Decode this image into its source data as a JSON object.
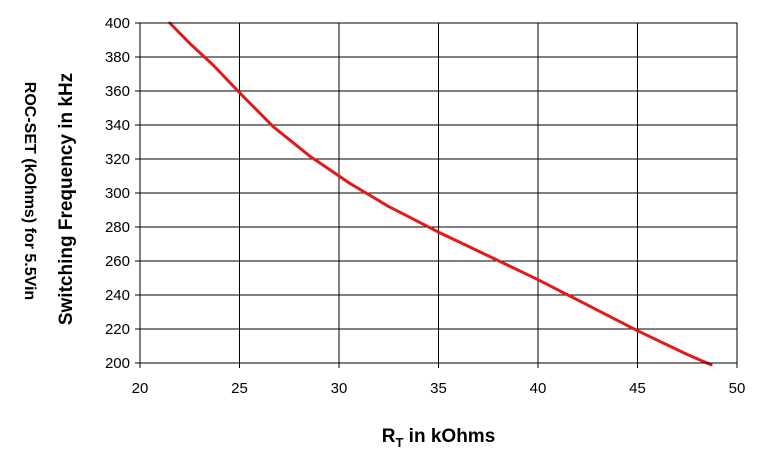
{
  "chart_data": {
    "type": "line",
    "title": "",
    "xlabel": {
      "main": "R",
      "subscript": "T",
      "suffix": " in kOhms"
    },
    "ylabel": "Switching Frequency in kHz",
    "ylabel_secondary": "ROC-SET (kOhms) for 5.5Vin",
    "xlim": [
      20,
      50
    ],
    "ylim": [
      200,
      400
    ],
    "xticks": [
      20,
      25,
      30,
      35,
      40,
      45,
      50
    ],
    "yticks": [
      200,
      220,
      240,
      260,
      280,
      300,
      320,
      340,
      360,
      380,
      400
    ],
    "grid": true,
    "legend": "none",
    "series": [
      {
        "color": "#e31a1c",
        "x": [
          21.5,
          22.5,
          23.7,
          25.0,
          26.7,
          28.5,
          30.5,
          32.5,
          35.0,
          37.5,
          40.0,
          42.5,
          45.0,
          47.5,
          48.7
        ],
        "y": [
          400,
          388,
          375,
          359,
          339,
          322,
          306,
          292,
          277,
          263,
          249,
          234,
          219,
          205,
          199
        ]
      }
    ]
  }
}
